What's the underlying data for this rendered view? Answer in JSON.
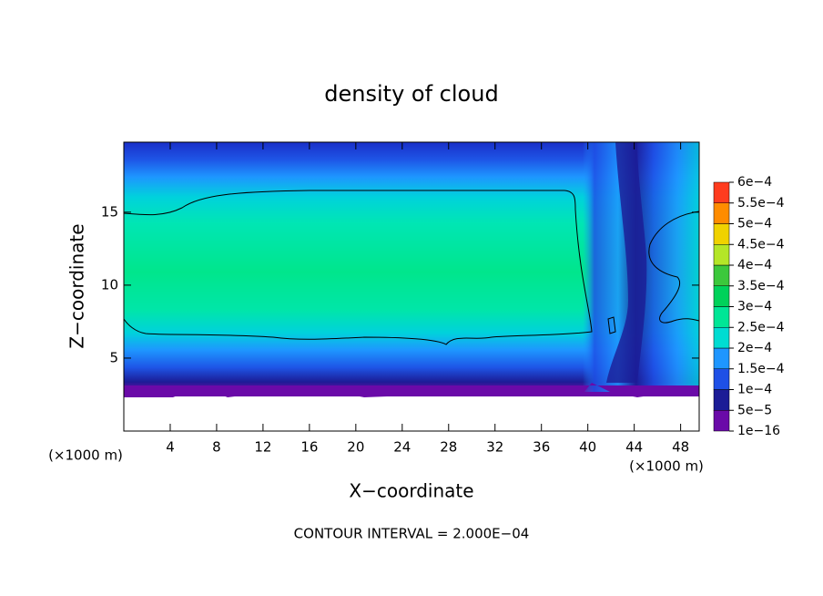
{
  "chart_data": {
    "type": "contour",
    "title": "density of cloud",
    "xlabel": "X−coordinate",
    "ylabel": "Z−coordinate",
    "x_unit": "(×1000 m)",
    "footer": "CONTOUR INTERVAL = 2.000E−04",
    "xlim": [
      0,
      49.6
    ],
    "ylim": [
      0,
      19.8
    ],
    "xticks": [
      4,
      8,
      12,
      16,
      20,
      24,
      28,
      32,
      36,
      40,
      44,
      48
    ],
    "yticks": [
      5,
      10,
      15
    ],
    "colorbar": {
      "levels": [
        {
          "value": 1e-16,
          "label": "1e−16"
        },
        {
          "value": 5e-05,
          "label": "5e−5"
        },
        {
          "value": 0.0001,
          "label": "1e−4"
        },
        {
          "value": 0.00015,
          "label": "1.5e−4"
        },
        {
          "value": 0.0002,
          "label": "2e−4"
        },
        {
          "value": 0.00025,
          "label": "2.5e−4"
        },
        {
          "value": 0.0003,
          "label": "3e−4"
        },
        {
          "value": 0.00035,
          "label": "3.5e−4"
        },
        {
          "value": 0.0004,
          "label": "4e−4"
        },
        {
          "value": 0.00045,
          "label": "4.5e−4"
        },
        {
          "value": 0.0005,
          "label": "5e−4"
        },
        {
          "value": 0.00055,
          "label": "5.5e−4"
        },
        {
          "value": 0.0006,
          "label": "6e−4"
        }
      ],
      "colors": [
        "#6a0aa8",
        "#1c1c96",
        "#1e50e6",
        "#1e96ff",
        "#00dcd2",
        "#00e696",
        "#00d25a",
        "#3cc83c",
        "#b4e628",
        "#f0d200",
        "#ff8c00",
        "#ff3c1e",
        "#ff7878"
      ]
    }
  }
}
